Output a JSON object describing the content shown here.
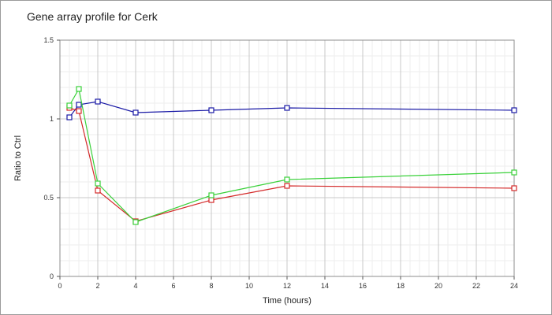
{
  "chart_data": {
    "type": "line",
    "title": "Gene array profile for Cerk",
    "xlabel": "Time (hours)",
    "ylabel": "Ratio to Ctrl",
    "xlim": [
      0,
      24
    ],
    "ylim": [
      0,
      1.5
    ],
    "x_ticks": [
      "0",
      "2",
      "4",
      "6",
      "8",
      "10",
      "12",
      "14",
      "16",
      "18",
      "20",
      "22",
      "24"
    ],
    "y_ticks": [
      "0",
      "0.5",
      "1",
      "1.5"
    ],
    "grid": true,
    "legend": "none",
    "marker": "open-square",
    "series": [
      {
        "color": "#1a1aa6",
        "x": [
          0.5,
          1,
          2,
          4,
          8,
          12,
          24
        ],
        "y": [
          1.01,
          1.09,
          1.11,
          1.04,
          1.055,
          1.07,
          1.055
        ]
      },
      {
        "color": "#d42a2a",
        "x": [
          0.5,
          1,
          2,
          4,
          8,
          12,
          24
        ],
        "y": [
          1.07,
          1.05,
          0.545,
          0.35,
          0.485,
          0.575,
          0.56
        ]
      },
      {
        "color": "#3ad13a",
        "x": [
          0.5,
          1,
          2,
          4,
          8,
          12,
          24
        ],
        "y": [
          1.085,
          1.19,
          0.59,
          0.345,
          0.515,
          0.615,
          0.66
        ]
      }
    ]
  }
}
